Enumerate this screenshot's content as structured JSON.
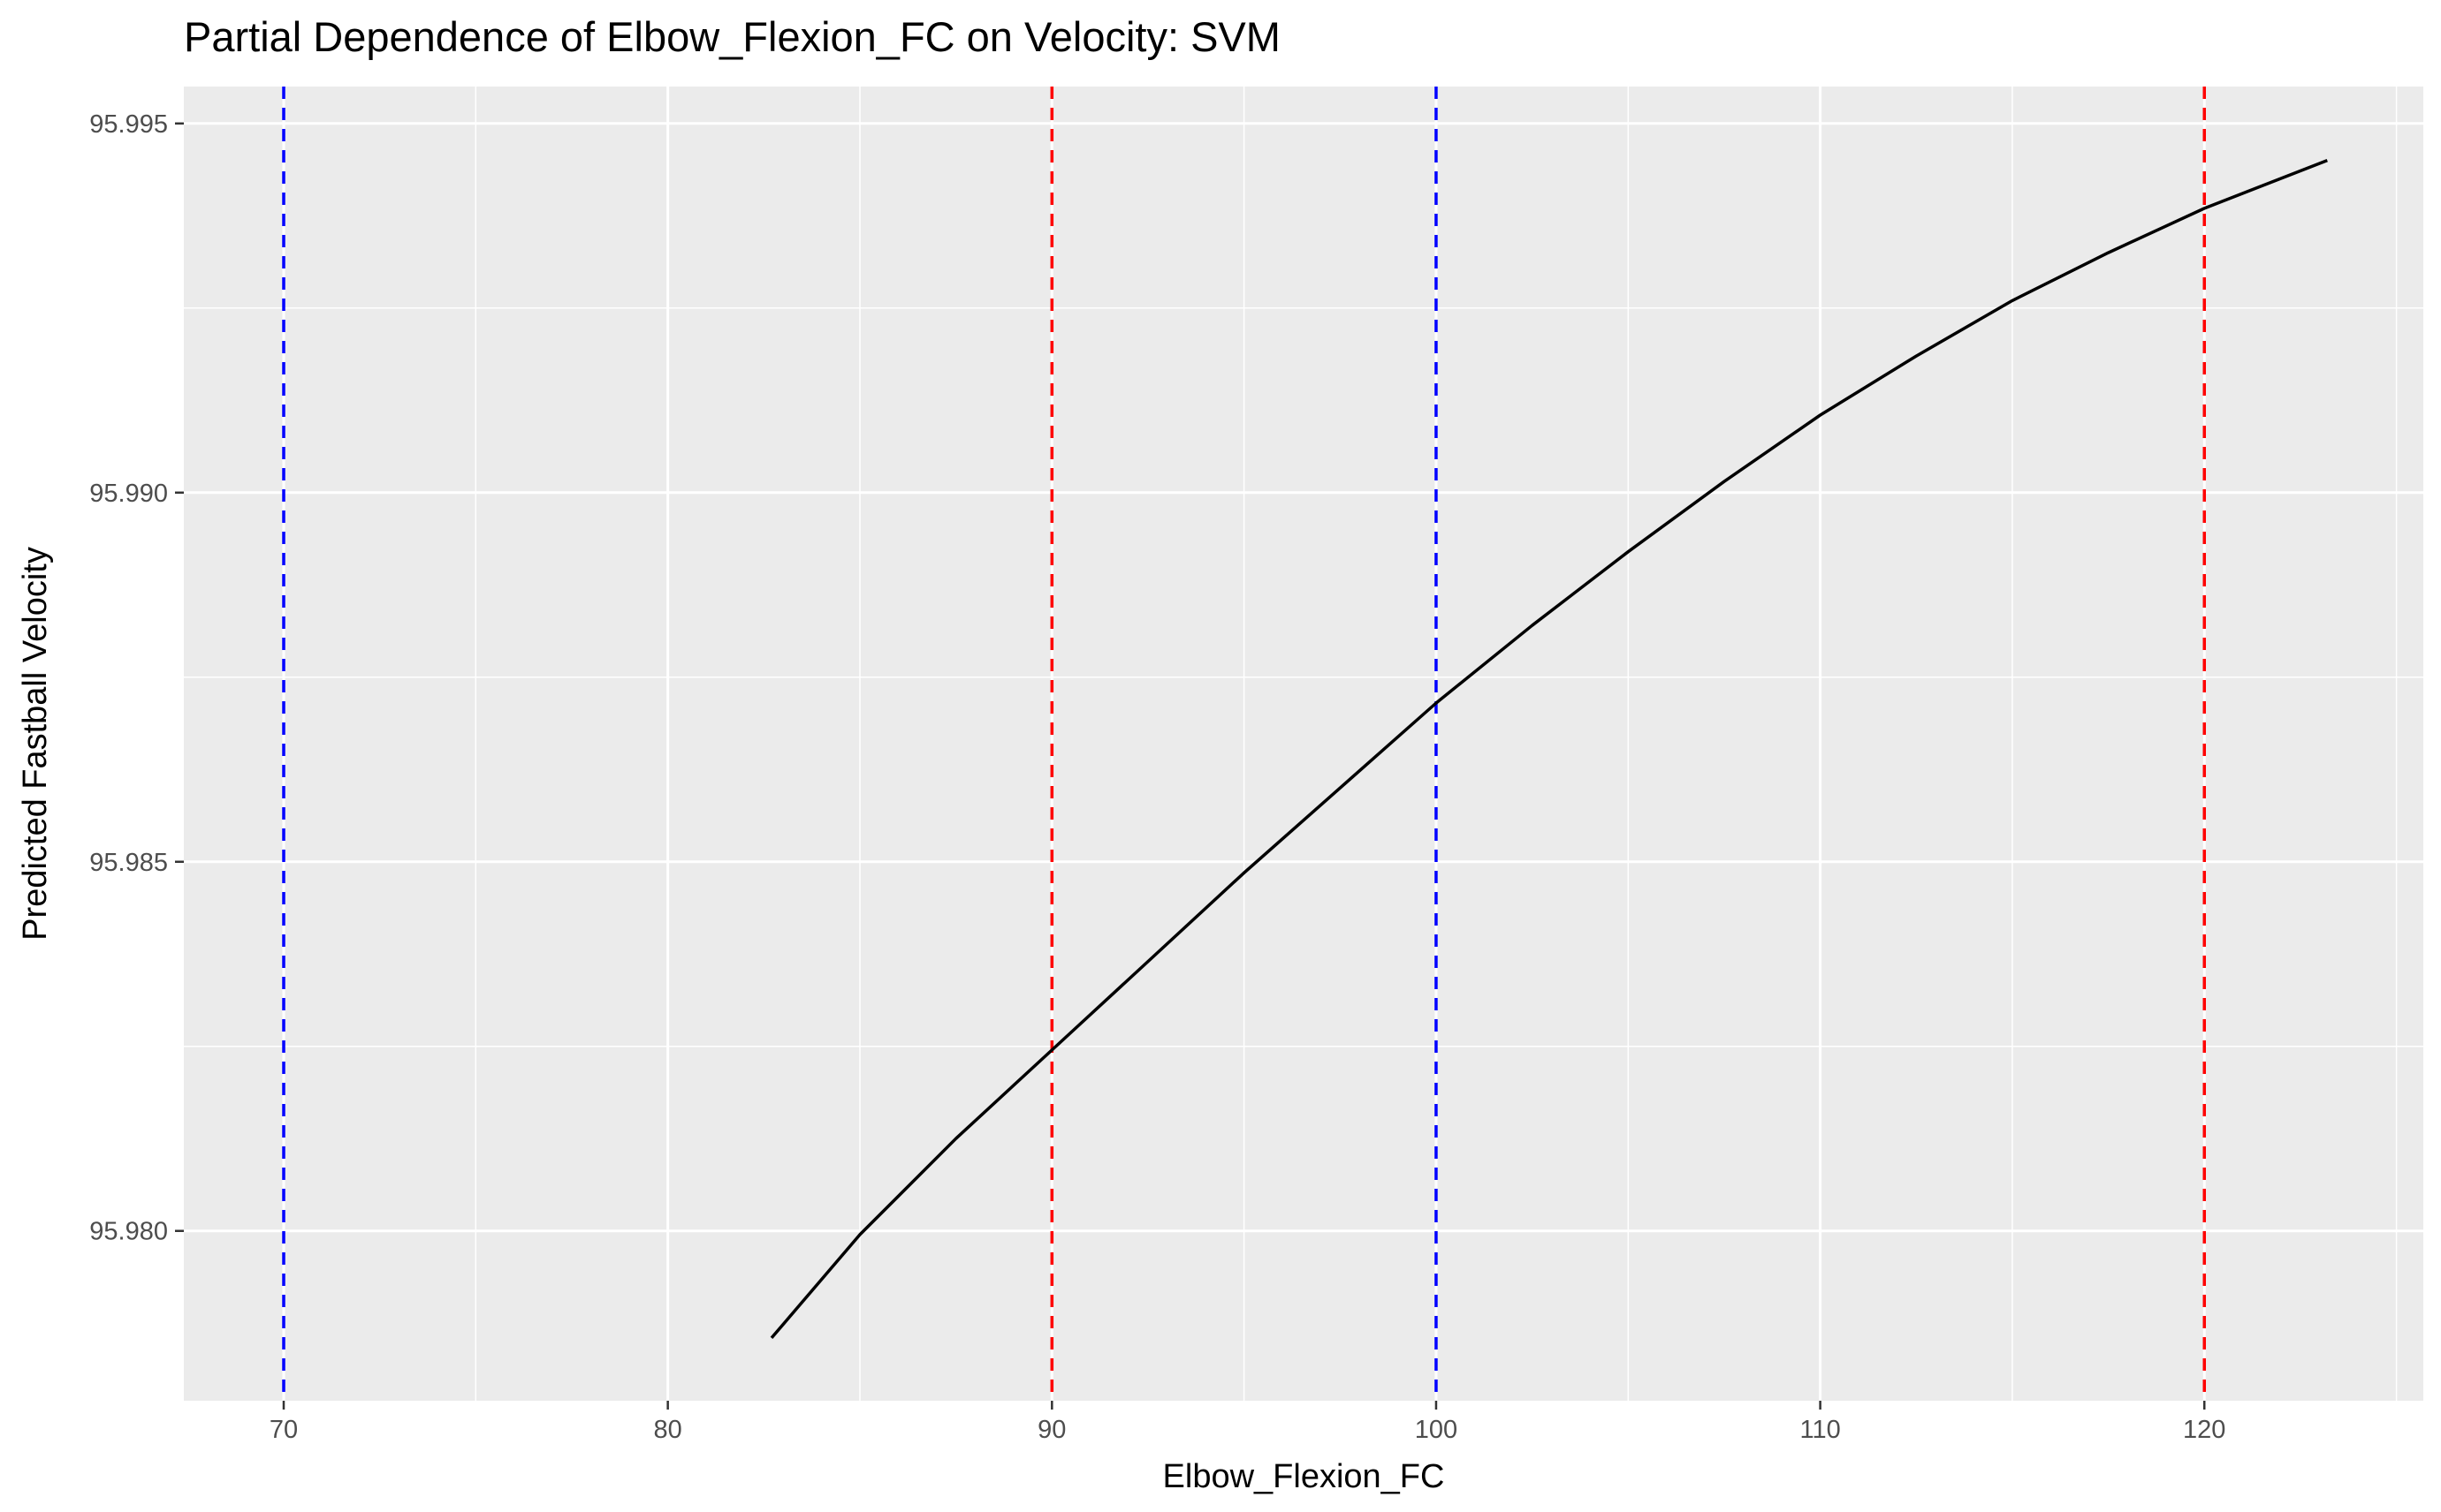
{
  "chart_data": {
    "type": "line",
    "title": "Partial Dependence of Elbow_Flexion_FC on Velocity: SVM",
    "xlabel": "Elbow_Flexion_FC",
    "ylabel": "Predicted Fastball Velocity",
    "xlim": [
      67.4,
      125.7
    ],
    "ylim": [
      95.9777,
      95.9955
    ],
    "x_ticks": [
      70,
      80,
      90,
      100,
      110,
      120
    ],
    "x_tick_labels": [
      "70",
      "80",
      "90",
      "100",
      "110",
      "120"
    ],
    "y_ticks": [
      95.98,
      95.985,
      95.99,
      95.995
    ],
    "y_tick_labels": [
      "95.980",
      "95.985",
      "95.990",
      "95.995"
    ],
    "grid": true,
    "panel_background": "#ebebeb",
    "series": [
      {
        "color": "#000000",
        "x": [
          82.7,
          85,
          87.5,
          90,
          92.5,
          95,
          97.5,
          100,
          102.5,
          105,
          107.5,
          110,
          112.5,
          115,
          117.5,
          120,
          123.2
        ],
        "y": [
          95.97855,
          95.97995,
          95.98125,
          95.98245,
          95.98365,
          95.98485,
          95.986,
          95.98715,
          95.9882,
          95.9892,
          95.99015,
          95.99105,
          95.99185,
          95.9926,
          95.99325,
          95.99385,
          95.9945
        ]
      }
    ],
    "vlines": [
      {
        "x": 70,
        "color": "#0000ff",
        "linestyle": "dashed"
      },
      {
        "x": 90,
        "color": "#ff0000",
        "linestyle": "dashed"
      },
      {
        "x": 100,
        "color": "#0000ff",
        "linestyle": "dashed"
      },
      {
        "x": 120,
        "color": "#ff0000",
        "linestyle": "dashed"
      }
    ]
  }
}
